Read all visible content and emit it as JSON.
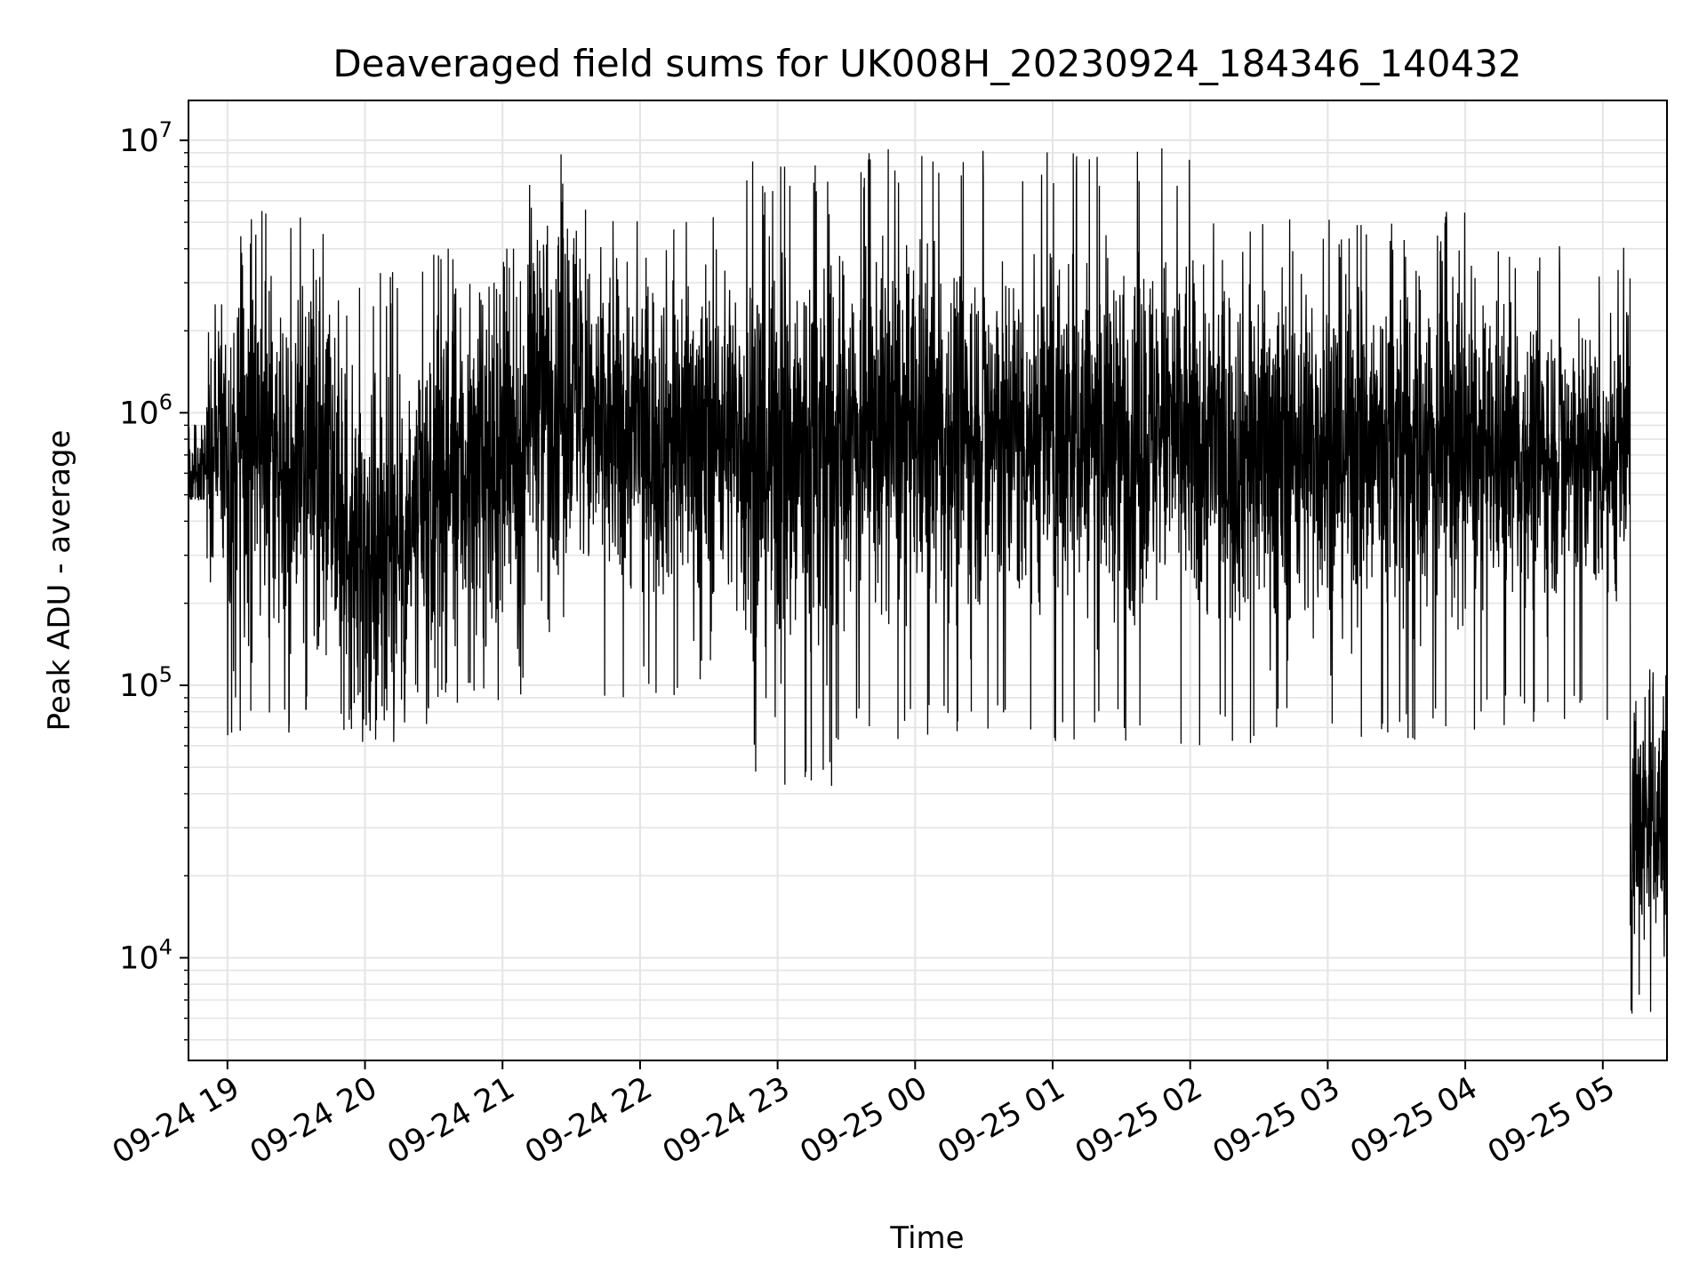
{
  "chart_data": {
    "type": "line",
    "title": "Deaveraged field sums for UK008H_20230924_184346_140432",
    "xlabel": "Time",
    "ylabel": "Peak ADU - average",
    "yscale": "log",
    "ylim": [
      4200,
      14000000
    ],
    "xlim": [
      "2023-09-24 18:43",
      "2023-09-25 05:28"
    ],
    "grid": true,
    "x_ticks": [
      {
        "t": "2023-09-24 19:00",
        "label": "09-24 19"
      },
      {
        "t": "2023-09-24 20:00",
        "label": "09-24 20"
      },
      {
        "t": "2023-09-24 21:00",
        "label": "09-24 21"
      },
      {
        "t": "2023-09-24 22:00",
        "label": "09-24 22"
      },
      {
        "t": "2023-09-24 23:00",
        "label": "09-24 23"
      },
      {
        "t": "2023-09-25 00:00",
        "label": "09-25 00"
      },
      {
        "t": "2023-09-25 01:00",
        "label": "09-25 01"
      },
      {
        "t": "2023-09-25 02:00",
        "label": "09-25 02"
      },
      {
        "t": "2023-09-25 03:00",
        "label": "09-25 03"
      },
      {
        "t": "2023-09-25 04:00",
        "label": "09-25 04"
      },
      {
        "t": "2023-09-25 05:00",
        "label": "09-25 05"
      }
    ],
    "y_ticks": [
      {
        "value": 10000,
        "base": "10",
        "exp": "4"
      },
      {
        "value": 100000,
        "base": "10",
        "exp": "5"
      },
      {
        "value": 1000000,
        "base": "10",
        "exp": "6"
      },
      {
        "value": 10000000,
        "base": "10",
        "exp": "7"
      }
    ],
    "series": [
      {
        "color": "#000000",
        "segments": [
          {
            "start": "2023-09-24 18:43",
            "end": "2023-09-24 18:51",
            "median": 650000,
            "spread": 0.6,
            "min": 480000,
            "max": 900000
          },
          {
            "start": "2023-09-24 18:51",
            "end": "2023-09-24 19:00",
            "median": 900000,
            "spread": 1.2,
            "min": 150000,
            "max": 2500000
          },
          {
            "start": "2023-09-24 19:00",
            "end": "2023-09-24 19:45",
            "median": 700000,
            "spread": 1.5,
            "min": 65000,
            "max": 5500000
          },
          {
            "start": "2023-09-24 19:45",
            "end": "2023-09-24 20:30",
            "median": 350000,
            "spread": 1.6,
            "min": 62000,
            "max": 3500000
          },
          {
            "start": "2023-09-24 20:30",
            "end": "2023-09-24 21:10",
            "median": 600000,
            "spread": 1.5,
            "min": 85000,
            "max": 4000000
          },
          {
            "start": "2023-09-24 21:10",
            "end": "2023-09-24 21:35",
            "median": 1300000,
            "spread": 1.5,
            "min": 150000,
            "max": 9200000
          },
          {
            "start": "2023-09-24 21:35",
            "end": "2023-09-24 22:45",
            "median": 850000,
            "spread": 1.4,
            "min": 90000,
            "max": 5600000
          },
          {
            "start": "2023-09-24 22:45",
            "end": "2023-09-24 23:25",
            "median": 700000,
            "spread": 1.9,
            "min": 40000,
            "max": 9000000
          },
          {
            "start": "2023-09-24 23:25",
            "end": "2023-09-25 02:00",
            "median": 850000,
            "spread": 1.5,
            "min": 60000,
            "max": 9400000
          },
          {
            "start": "2023-09-25 02:00",
            "end": "2023-09-25 04:00",
            "median": 750000,
            "spread": 1.5,
            "min": 60000,
            "max": 5500000
          },
          {
            "start": "2023-09-25 04:00",
            "end": "2023-09-25 05:12",
            "median": 700000,
            "spread": 1.2,
            "min": 65000,
            "max": 4200000
          },
          {
            "start": "2023-09-25 05:12",
            "end": "2023-09-25 05:28",
            "median": 32000,
            "spread": 1.1,
            "min": 6000,
            "max": 120000
          }
        ]
      }
    ]
  }
}
